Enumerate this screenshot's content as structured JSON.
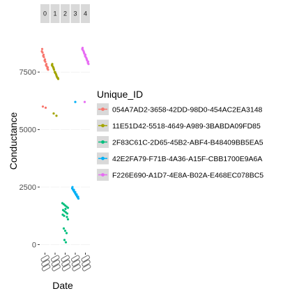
{
  "chart_data": {
    "type": "scatter",
    "xlabel": "Date",
    "ylabel": "Conductance",
    "y_ticks": [
      0,
      2500,
      5000,
      7500
    ],
    "y_tick_labels": [
      "0",
      "2500",
      "5000",
      "7500"
    ],
    "ylim": [
      -350,
      9600
    ],
    "facet_strip_labels": [
      "0",
      "1",
      "2",
      "3",
      "4"
    ],
    "legend": {
      "title": "Unique_ID",
      "position": "right",
      "entries": [
        {
          "label": "054A7AD2-3658-42DD-98D0-454AC2EA3148",
          "color": "#F8766D"
        },
        {
          "label": "11E51D42-5518-4649-A989-3BABDA09FD85",
          "color": "#A3A500"
        },
        {
          "label": "2F83C61C-2D65-45B2-ABF4-B48409BB5EA5",
          "color": "#00BF7D"
        },
        {
          "label": "42E2FA79-F71B-4A36-A15F-CBB1700E9A6A",
          "color": "#00B0F6"
        },
        {
          "label": "F226E690-A1D7-4E8A-B02A-E468EC078BC5",
          "color": "#E76BF3"
        }
      ]
    },
    "series": [
      {
        "name": "054A7AD2-3658-42DD-98D0-454AC2EA3148",
        "color": "#F8766D",
        "panel": 0,
        "x": [
          0.05,
          0.15,
          0.25,
          0.35,
          0.45,
          0.55,
          0.65,
          0.75,
          0.85,
          0.95,
          0.1,
          0.3,
          0.5,
          0.7,
          0.9,
          0.2,
          0.6
        ],
        "y": [
          8400,
          8350,
          8200,
          8150,
          8000,
          7950,
          7800,
          7750,
          7650,
          7600,
          8500,
          8250,
          8050,
          7850,
          7700,
          6000,
          5950
        ]
      },
      {
        "name": "11E51D42-5518-4649-A989-3BABDA09FD85",
        "color": "#A3A500",
        "panel": 1,
        "x": [
          0.05,
          0.15,
          0.25,
          0.35,
          0.45,
          0.55,
          0.65,
          0.75,
          0.85,
          0.95,
          0.1,
          0.3,
          0.5,
          0.7,
          0.9,
          0.3,
          0.7
        ],
        "y": [
          7800,
          7750,
          7700,
          7600,
          7500,
          7450,
          7400,
          7300,
          7250,
          7200,
          7850,
          7650,
          7500,
          7350,
          7250,
          5700,
          5600
        ]
      },
      {
        "name": "2F83C61C-2D65-45B2-ABF4-B48409BB5EA5",
        "color": "#00BF7D",
        "panel": 2,
        "x": [
          0.1,
          0.3,
          0.5,
          0.7,
          0.9,
          0.2,
          0.4,
          0.6,
          0.8,
          0.15,
          0.35,
          0.55,
          0.75,
          0.9,
          0.3,
          0.5,
          0.7,
          0.4,
          0.6
        ],
        "y": [
          1800,
          1750,
          1700,
          1650,
          1600,
          1500,
          1450,
          1400,
          1350,
          1300,
          1250,
          1550,
          1200,
          1100,
          700,
          600,
          500,
          200,
          100
        ]
      },
      {
        "name": "42E2FA79-F71B-4A36-A15F-CBB1700E9A6A",
        "color": "#00B0F6",
        "panel": 3,
        "x": [
          0.05,
          0.15,
          0.25,
          0.35,
          0.45,
          0.55,
          0.65,
          0.75,
          0.85,
          0.95,
          0.1,
          0.3,
          0.5,
          0.7,
          0.9,
          0.5
        ],
        "y": [
          2450,
          2400,
          2350,
          2300,
          2250,
          2200,
          2150,
          2100,
          2050,
          2000,
          2500,
          2380,
          2280,
          2180,
          2080,
          6200
        ]
      },
      {
        "name": "F226E690-A1D7-4E8A-B02A-E468EC078BC5",
        "color": "#E76BF3",
        "panel": 4,
        "x": [
          0.05,
          0.15,
          0.25,
          0.35,
          0.45,
          0.55,
          0.65,
          0.75,
          0.85,
          0.95,
          0.1,
          0.3,
          0.5,
          0.7,
          0.9,
          0.4
        ],
        "y": [
          8500,
          8450,
          8400,
          8300,
          8200,
          8150,
          8100,
          8000,
          7900,
          7850,
          8550,
          8350,
          8250,
          8050,
          7950,
          6200
        ]
      }
    ]
  }
}
